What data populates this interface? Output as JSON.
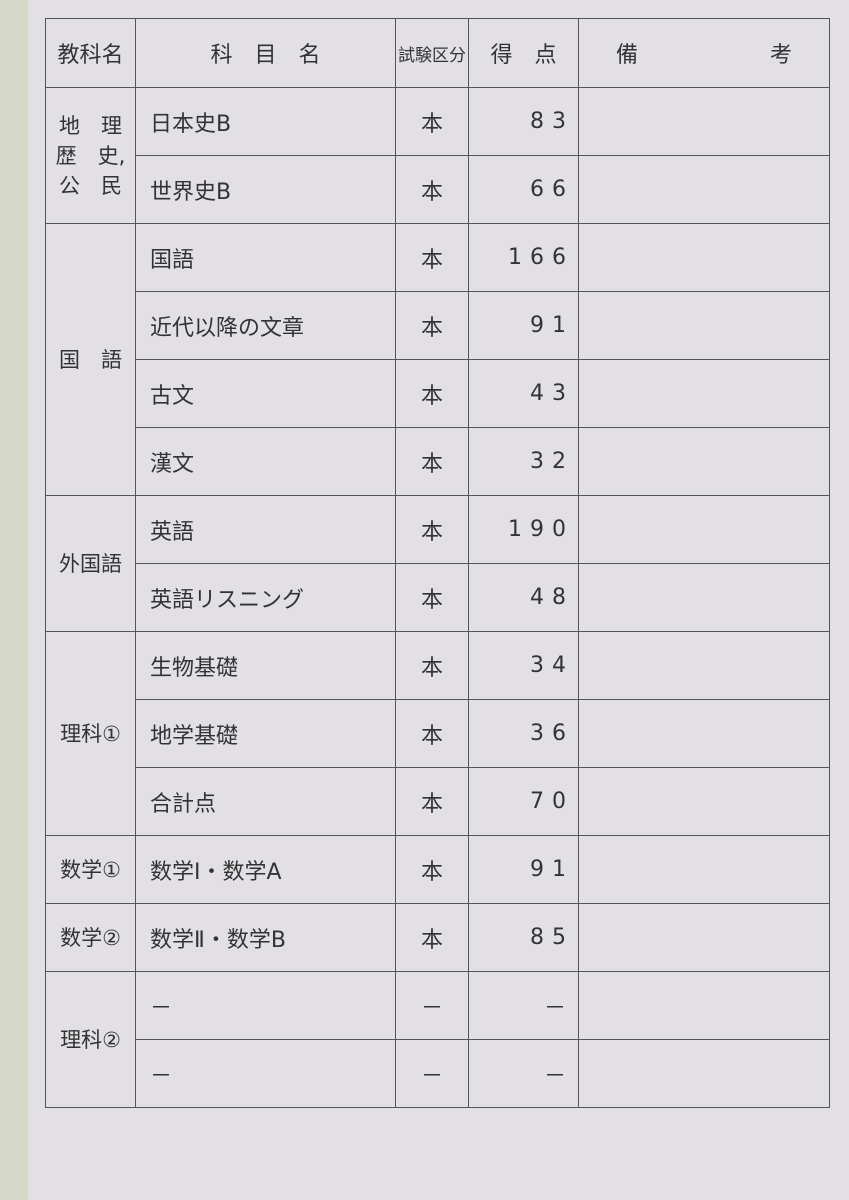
{
  "header": {
    "group": "教科名",
    "subject": "科　目　名",
    "kind": "試験区分",
    "score": "得　点",
    "note": "備　　　　　　考"
  },
  "groups": [
    {
      "lines": [
        "地　理",
        "歴　史,",
        "公　民"
      ],
      "rows": [
        {
          "subject": "日本史B",
          "kind": "本",
          "score": "83"
        },
        {
          "subject": "世界史B",
          "kind": "本",
          "score": "66"
        }
      ]
    },
    {
      "lines": [
        "国　語"
      ],
      "rows": [
        {
          "subject": "国語",
          "kind": "本",
          "score": "166"
        },
        {
          "subject": "近代以降の文章",
          "kind": "本",
          "score": "91"
        },
        {
          "subject": "古文",
          "kind": "本",
          "score": "43"
        },
        {
          "subject": "漢文",
          "kind": "本",
          "score": "32"
        }
      ]
    },
    {
      "lines": [
        "外国語"
      ],
      "rows": [
        {
          "subject": "英語",
          "kind": "本",
          "score": "190"
        },
        {
          "subject": "英語リスニング",
          "kind": "本",
          "score": "48"
        }
      ]
    },
    {
      "lines": [
        "理科①"
      ],
      "rows": [
        {
          "subject": "生物基礎",
          "kind": "本",
          "score": "34"
        },
        {
          "subject": "地学基礎",
          "kind": "本",
          "score": "36"
        },
        {
          "subject": "合計点",
          "kind": "本",
          "score": "70"
        }
      ]
    },
    {
      "lines": [
        "数学①"
      ],
      "rows": [
        {
          "subject": "数学Ⅰ・数学A",
          "kind": "本",
          "score": "91"
        }
      ]
    },
    {
      "lines": [
        "数学②"
      ],
      "rows": [
        {
          "subject": "数学Ⅱ・数学B",
          "kind": "本",
          "score": "85"
        }
      ]
    },
    {
      "lines": [
        "理科②"
      ],
      "rows": [
        {
          "subject": "－",
          "kind": "－",
          "score": "－"
        },
        {
          "subject": "－",
          "kind": "－",
          "score": "－"
        }
      ]
    }
  ]
}
